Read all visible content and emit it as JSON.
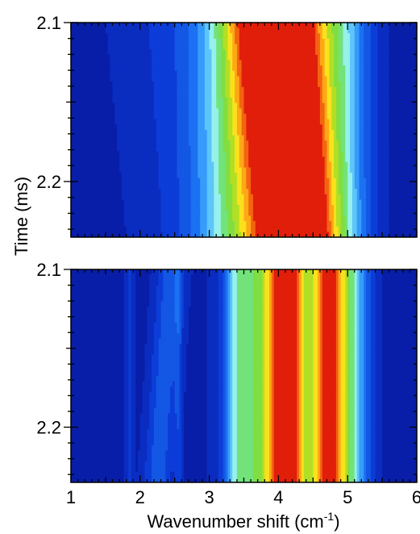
{
  "chart_data": [
    {
      "type": "heatmap",
      "panel": "top",
      "xlabel": "",
      "ylabel": "",
      "xlim": [
        1,
        6
      ],
      "ylim": [
        2.1,
        2.235
      ],
      "y_inverted": true,
      "y_ticks": [
        "2.1",
        "2.2"
      ],
      "colormap": "rainbow (blue = low, red = high)",
      "peaks": [
        {
          "center": 4.02,
          "width": 0.4,
          "amp": 1.0,
          "center_drift": 0.12
        },
        {
          "center": 4.4,
          "width": 0.33,
          "amp": 0.55,
          "center_drift": 0.0
        },
        {
          "center": 3.4,
          "width": 0.42,
          "amp": 0.42,
          "center_drift": 0.0
        },
        {
          "center": 4.95,
          "width": 0.3,
          "amp": 0.35,
          "center_drift": 0.0
        },
        {
          "center": 2.75,
          "width": 0.65,
          "amp": 0.13,
          "center_drift": 0.15
        }
      ]
    },
    {
      "type": "heatmap",
      "panel": "bottom",
      "xlabel": "Wavenumber shift (cm⁻¹)",
      "ylabel": "",
      "xlim": [
        1,
        6
      ],
      "ylim": [
        2.1,
        2.235
      ],
      "y_inverted": true,
      "x_ticks": [
        "1",
        "2",
        "3",
        "4",
        "5",
        "6"
      ],
      "y_ticks": [
        "2.1",
        "2.2"
      ],
      "colormap": "rainbow (blue = low, red = high)",
      "peaks": [
        {
          "center": 4.15,
          "width": 0.2,
          "amp": 0.95,
          "center_drift": 0.0
        },
        {
          "center": 4.7,
          "width": 0.18,
          "amp": 0.92,
          "center_drift": 0.0
        },
        {
          "center": 3.7,
          "width": 0.3,
          "amp": 0.55,
          "center_drift": 0.0
        },
        {
          "center": 5.05,
          "width": 0.2,
          "amp": 0.45,
          "center_drift": 0.0
        },
        {
          "center": 3.4,
          "width": 0.12,
          "amp": 0.2,
          "center_drift": 0.0
        },
        {
          "center": 2.35,
          "width": 0.15,
          "amp": 0.22,
          "center_drift": -0.1
        },
        {
          "center": 1.85,
          "width": 0.04,
          "amp": 0.13,
          "center_drift": 0.0
        },
        {
          "center": 2.55,
          "width": 0.04,
          "amp": 0.12,
          "center_drift": 0.0
        }
      ]
    }
  ],
  "labels": {
    "ylabel": "Time (ms)",
    "xlabel": "Wavenumber shift (cm",
    "xlabel_sup": "-1",
    "xlabel_close": ")"
  }
}
